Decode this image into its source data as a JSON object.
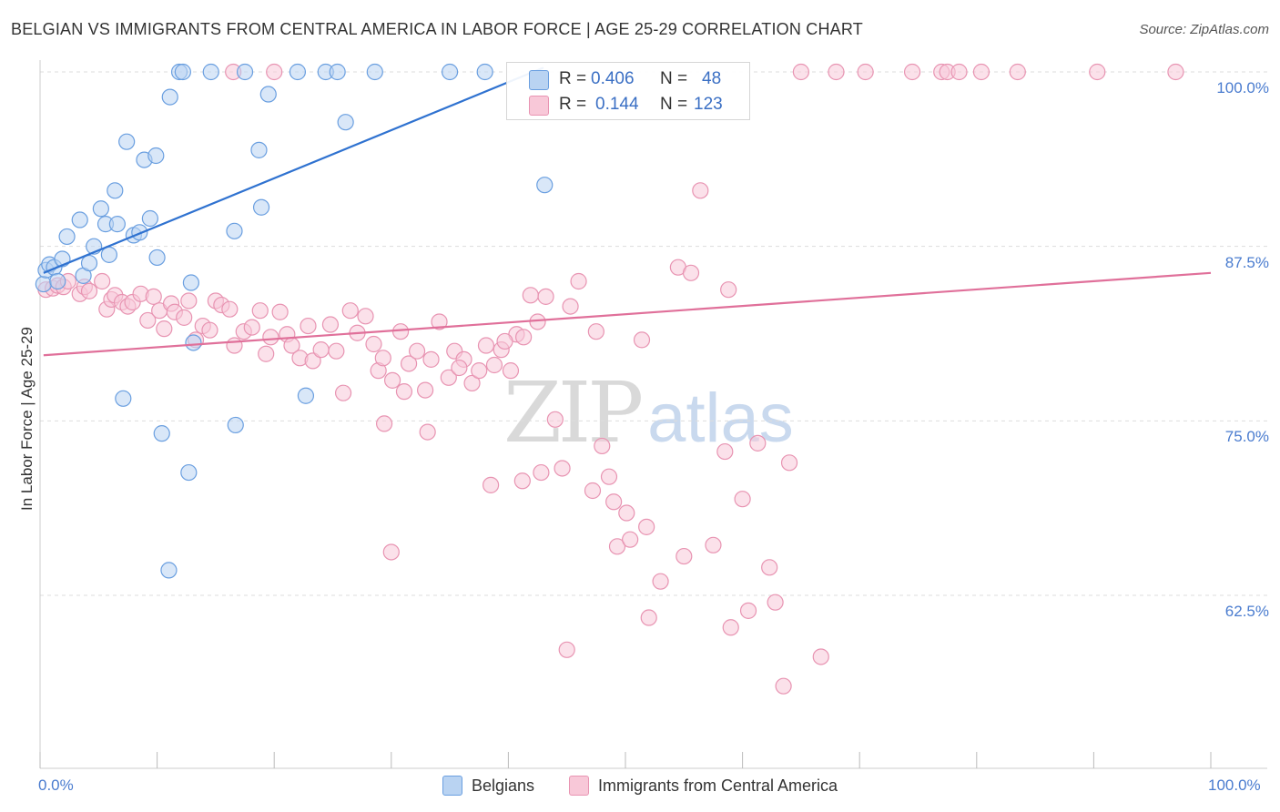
{
  "header": {
    "title": "BELGIAN VS IMMIGRANTS FROM CENTRAL AMERICA IN LABOR FORCE | AGE 25-29 CORRELATION CHART",
    "source": "Source: ZipAtlas.com"
  },
  "watermark": {
    "zip": "ZIP",
    "atlas": "atlas"
  },
  "legend_top": {
    "belgians": {
      "r_label": "R =",
      "r_value": "0.406",
      "n_label": "N =",
      "n_value": "48"
    },
    "central_america": {
      "r_label": "R =",
      "r_value": "0.144",
      "n_label": "N =",
      "n_value": "123"
    }
  },
  "legend_bottom": {
    "belgians": "Belgians",
    "central_america": "Immigrants from Central America"
  },
  "colors": {
    "belgians_fill": "#b9d3f2",
    "belgians_stroke": "#6a9fe0",
    "belgians_line": "#2f72d0",
    "ca_fill": "#f8c8d8",
    "ca_stroke": "#e894b2",
    "ca_line": "#e0709a",
    "tick_text": "#4a7ccf",
    "grid": "#dddddd"
  },
  "chart_data": {
    "type": "scatter",
    "title": "BELGIAN VS IMMIGRANTS FROM CENTRAL AMERICA IN LABOR FORCE | AGE 25-29 CORRELATION CHART",
    "xlabel": "",
    "ylabel": "In Labor Force | Age 25-29",
    "xlim": [
      0,
      100
    ],
    "ylim": [
      50.5,
      101.5
    ],
    "x_tick_labels": [
      "0.0%",
      "100.0%"
    ],
    "y_ticks": [
      62.5,
      75.0,
      87.5,
      100.0
    ],
    "y_tick_labels": [
      "62.5%",
      "75.0%",
      "87.5%",
      "100.0%"
    ],
    "grid": true,
    "legend_position": "top-center",
    "series": [
      {
        "name": "Belgians",
        "R": 0.406,
        "N": 48,
        "trend": {
          "x": [
            0.3,
            43.0
          ],
          "y": [
            85.6,
            100.3
          ]
        },
        "points": [
          [
            0.3,
            84.8
          ],
          [
            0.5,
            85.8
          ],
          [
            0.8,
            86.2
          ],
          [
            1.2,
            86.0
          ],
          [
            1.5,
            85.0
          ],
          [
            1.9,
            86.6
          ],
          [
            2.3,
            88.2
          ],
          [
            3.4,
            89.4
          ],
          [
            3.7,
            85.4
          ],
          [
            4.2,
            86.3
          ],
          [
            4.6,
            87.5
          ],
          [
            5.2,
            90.2
          ],
          [
            5.6,
            89.1
          ],
          [
            5.9,
            86.9
          ],
          [
            6.6,
            89.1
          ],
          [
            6.4,
            91.5
          ],
          [
            7.4,
            95.0
          ],
          [
            8.0,
            88.3
          ],
          [
            8.5,
            88.5
          ],
          [
            8.9,
            93.7
          ],
          [
            9.4,
            89.5
          ],
          [
            9.9,
            94.0
          ],
          [
            10.0,
            86.7
          ],
          [
            11.1,
            98.2
          ],
          [
            11.9,
            100.0
          ],
          [
            12.2,
            100.0
          ],
          [
            14.6,
            100.0
          ],
          [
            17.5,
            100.0
          ],
          [
            22.0,
            100.0
          ],
          [
            24.4,
            100.0
          ],
          [
            25.4,
            100.0
          ],
          [
            28.6,
            100.0
          ],
          [
            35.0,
            100.0
          ],
          [
            38.0,
            100.0
          ],
          [
            16.6,
            88.6
          ],
          [
            18.7,
            94.4
          ],
          [
            18.9,
            90.3
          ],
          [
            19.5,
            98.4
          ],
          [
            26.1,
            96.4
          ],
          [
            43.1,
            91.9
          ],
          [
            12.9,
            84.9
          ],
          [
            13.1,
            80.6
          ],
          [
            7.1,
            76.6
          ],
          [
            10.4,
            74.1
          ],
          [
            12.7,
            71.3
          ],
          [
            11.0,
            64.3
          ],
          [
            16.7,
            74.7
          ],
          [
            22.7,
            76.8
          ]
        ]
      },
      {
        "name": "Immigrants from Central America",
        "R": 0.144,
        "N": 123,
        "trend": {
          "x": [
            0.3,
            100.0
          ],
          "y": [
            79.7,
            85.6
          ]
        },
        "points": [
          [
            0.5,
            84.4
          ],
          [
            1.1,
            84.5
          ],
          [
            1.5,
            84.7
          ],
          [
            2.0,
            84.6
          ],
          [
            2.4,
            85.0
          ],
          [
            3.4,
            84.1
          ],
          [
            3.8,
            84.6
          ],
          [
            4.2,
            84.3
          ],
          [
            5.3,
            85.0
          ],
          [
            5.7,
            83.0
          ],
          [
            6.1,
            83.7
          ],
          [
            6.4,
            84.0
          ],
          [
            7.0,
            83.5
          ],
          [
            7.5,
            83.2
          ],
          [
            7.9,
            83.5
          ],
          [
            8.6,
            84.1
          ],
          [
            9.2,
            82.2
          ],
          [
            9.7,
            83.9
          ],
          [
            10.2,
            82.9
          ],
          [
            10.6,
            81.6
          ],
          [
            11.2,
            83.4
          ],
          [
            11.5,
            82.8
          ],
          [
            12.3,
            82.4
          ],
          [
            12.7,
            83.6
          ],
          [
            13.3,
            80.8
          ],
          [
            13.9,
            81.8
          ],
          [
            14.5,
            81.5
          ],
          [
            15.0,
            83.6
          ],
          [
            15.5,
            83.3
          ],
          [
            16.2,
            83.0
          ],
          [
            16.6,
            80.4
          ],
          [
            17.4,
            81.4
          ],
          [
            18.1,
            81.7
          ],
          [
            18.8,
            82.9
          ],
          [
            19.3,
            79.8
          ],
          [
            19.7,
            81.0
          ],
          [
            20.5,
            82.8
          ],
          [
            21.1,
            81.2
          ],
          [
            21.5,
            80.4
          ],
          [
            22.2,
            79.5
          ],
          [
            22.9,
            81.8
          ],
          [
            23.3,
            79.3
          ],
          [
            24.0,
            80.1
          ],
          [
            24.8,
            81.9
          ],
          [
            25.3,
            80.0
          ],
          [
            25.9,
            77.0
          ],
          [
            26.5,
            82.9
          ],
          [
            27.1,
            81.3
          ],
          [
            27.8,
            82.5
          ],
          [
            28.5,
            80.5
          ],
          [
            28.9,
            78.6
          ],
          [
            29.3,
            79.5
          ],
          [
            30.1,
            77.9
          ],
          [
            30.8,
            81.4
          ],
          [
            31.5,
            79.1
          ],
          [
            32.2,
            80.0
          ],
          [
            32.9,
            77.2
          ],
          [
            33.4,
            79.4
          ],
          [
            34.1,
            82.1
          ],
          [
            34.9,
            78.1
          ],
          [
            35.4,
            80.0
          ],
          [
            36.2,
            79.4
          ],
          [
            36.9,
            77.7
          ],
          [
            37.5,
            78.6
          ],
          [
            38.1,
            80.4
          ],
          [
            38.8,
            79.0
          ],
          [
            39.4,
            80.1
          ],
          [
            40.2,
            78.6
          ],
          [
            40.7,
            81.2
          ],
          [
            41.3,
            81.0
          ],
          [
            41.9,
            84.0
          ],
          [
            42.5,
            82.1
          ],
          [
            43.2,
            83.9
          ],
          [
            44.0,
            75.1
          ],
          [
            44.6,
            71.6
          ],
          [
            45.3,
            83.2
          ],
          [
            46.0,
            85.0
          ],
          [
            47.5,
            81.4
          ],
          [
            48.0,
            73.2
          ],
          [
            48.6,
            71.0
          ],
          [
            49.3,
            66.0
          ],
          [
            50.1,
            68.4
          ],
          [
            50.4,
            66.5
          ],
          [
            51.4,
            80.8
          ],
          [
            52.0,
            60.9
          ],
          [
            54.5,
            86.0
          ],
          [
            55.6,
            85.6
          ],
          [
            56.4,
            91.5
          ],
          [
            58.5,
            72.8
          ],
          [
            58.8,
            84.4
          ],
          [
            60.5,
            61.4
          ],
          [
            61.3,
            73.4
          ],
          [
            62.3,
            64.5
          ],
          [
            63.5,
            56.0
          ],
          [
            65.0,
            100.0
          ],
          [
            68.0,
            100.0
          ],
          [
            70.5,
            100.0
          ],
          [
            74.5,
            100.0
          ],
          [
            77.0,
            100.0
          ],
          [
            77.5,
            100.0
          ],
          [
            78.5,
            100.0
          ],
          [
            80.4,
            100.0
          ],
          [
            83.5,
            100.0
          ],
          [
            90.3,
            100.0
          ],
          [
            97.0,
            100.0
          ],
          [
            20.0,
            100.0
          ],
          [
            16.5,
            100.0
          ],
          [
            29.4,
            74.8
          ],
          [
            31.1,
            77.1
          ],
          [
            33.1,
            74.2
          ],
          [
            35.8,
            78.8
          ],
          [
            39.7,
            80.7
          ],
          [
            41.2,
            70.7
          ],
          [
            42.8,
            71.3
          ],
          [
            47.2,
            70.0
          ],
          [
            51.8,
            67.4
          ],
          [
            55.0,
            65.3
          ],
          [
            57.5,
            66.1
          ],
          [
            60.0,
            69.4
          ],
          [
            62.8,
            62.0
          ],
          [
            64.0,
            72.0
          ],
          [
            66.7,
            58.1
          ],
          [
            38.5,
            70.4
          ],
          [
            30.0,
            65.6
          ],
          [
            45.0,
            58.6
          ],
          [
            59.0,
            60.2
          ],
          [
            53.0,
            63.5
          ],
          [
            49.0,
            69.2
          ]
        ]
      }
    ]
  }
}
